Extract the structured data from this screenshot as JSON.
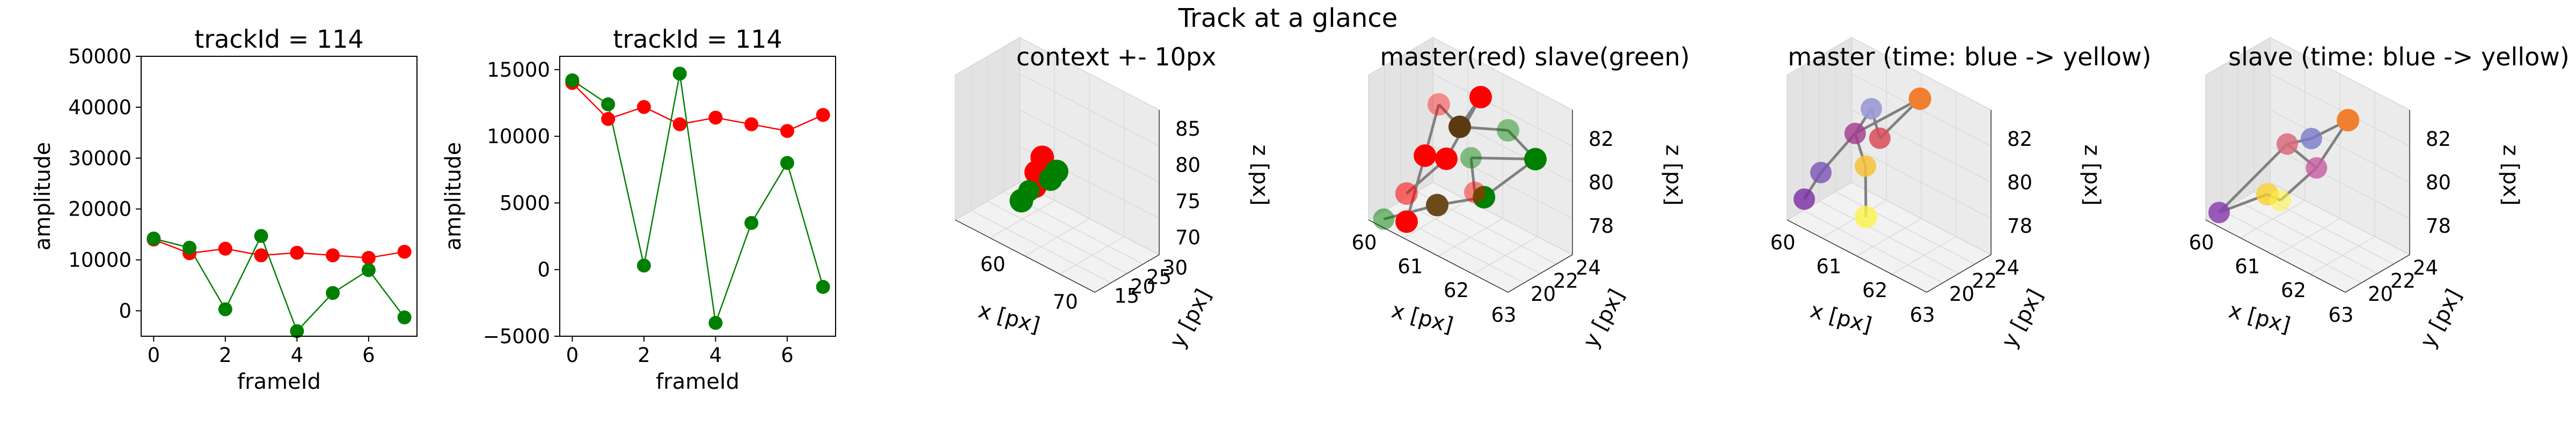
{
  "figure": {
    "suptitle": "Track at a glance"
  },
  "chart_data": [
    {
      "type": "line",
      "title": "trackId = 114",
      "xlabel": "frameId",
      "ylabel": "amplitude",
      "xlim": [
        -0.35,
        7.35
      ],
      "ylim": [
        -5000,
        50000
      ],
      "xticks": [
        0,
        2,
        4,
        6
      ],
      "yticks": [
        0,
        10000,
        20000,
        30000,
        40000,
        50000
      ],
      "x": [
        0,
        1,
        2,
        3,
        4,
        5,
        6,
        7
      ],
      "series": [
        {
          "color": "#ff0000",
          "values": [
            14000,
            11300,
            12200,
            10900,
            11400,
            10900,
            10400,
            11600
          ]
        },
        {
          "color": "#008000",
          "values": [
            14200,
            12400,
            300,
            14700,
            -4000,
            3500,
            8000,
            -1300
          ]
        }
      ]
    },
    {
      "type": "line",
      "title": "trackId = 114",
      "xlabel": "frameId",
      "ylabel": "amplitude",
      "xlim": [
        -0.35,
        7.35
      ],
      "ylim": [
        -5000,
        16000
      ],
      "xticks": [
        0,
        2,
        4,
        6
      ],
      "yticks": [
        -5000,
        0,
        5000,
        10000,
        15000
      ],
      "x": [
        0,
        1,
        2,
        3,
        4,
        5,
        6,
        7
      ],
      "series": [
        {
          "color": "#ff0000",
          "values": [
            14000,
            11300,
            12200,
            10900,
            11400,
            10900,
            10400,
            11600
          ]
        },
        {
          "color": "#008000",
          "values": [
            14200,
            12400,
            300,
            14700,
            -4000,
            3500,
            8000,
            -1300
          ]
        }
      ]
    },
    {
      "type": "scatter3d",
      "title": "context +- 10px",
      "xlabel": "x [px]",
      "ylabel": "y [px]",
      "zlabel": "z [px]",
      "xticks": [
        "60",
        "70"
      ],
      "yticks": [
        "15",
        "20",
        "25",
        "30"
      ],
      "zticks": [
        "70",
        "75",
        "80",
        "85"
      ]
    },
    {
      "type": "scatter3d",
      "title": "master(red) slave(green)",
      "xlabel": "x [px]",
      "ylabel": "y [px]",
      "zlabel": "z [px]",
      "xticks": [
        "60",
        "61",
        "62",
        "63"
      ],
      "yticks": [
        "20",
        "22",
        "24"
      ],
      "zticks": [
        "78",
        "80",
        "82"
      ]
    },
    {
      "type": "scatter3d",
      "title": "master (time: blue -> yellow)",
      "xlabel": "x [px]",
      "ylabel": "y [px]",
      "zlabel": "z [px]",
      "xticks": [
        "60",
        "61",
        "62",
        "63"
      ],
      "yticks": [
        "20",
        "22",
        "24"
      ],
      "zticks": [
        "78",
        "80",
        "82"
      ]
    },
    {
      "type": "scatter3d",
      "title": "slave (time: blue -> yellow)",
      "xlabel": "x [px]",
      "ylabel": "y [px]",
      "zlabel": "z [px]",
      "xticks": [
        "60",
        "61",
        "62",
        "63"
      ],
      "yticks": [
        "20",
        "22",
        "24"
      ],
      "zticks": [
        "78",
        "80",
        "82"
      ]
    }
  ]
}
